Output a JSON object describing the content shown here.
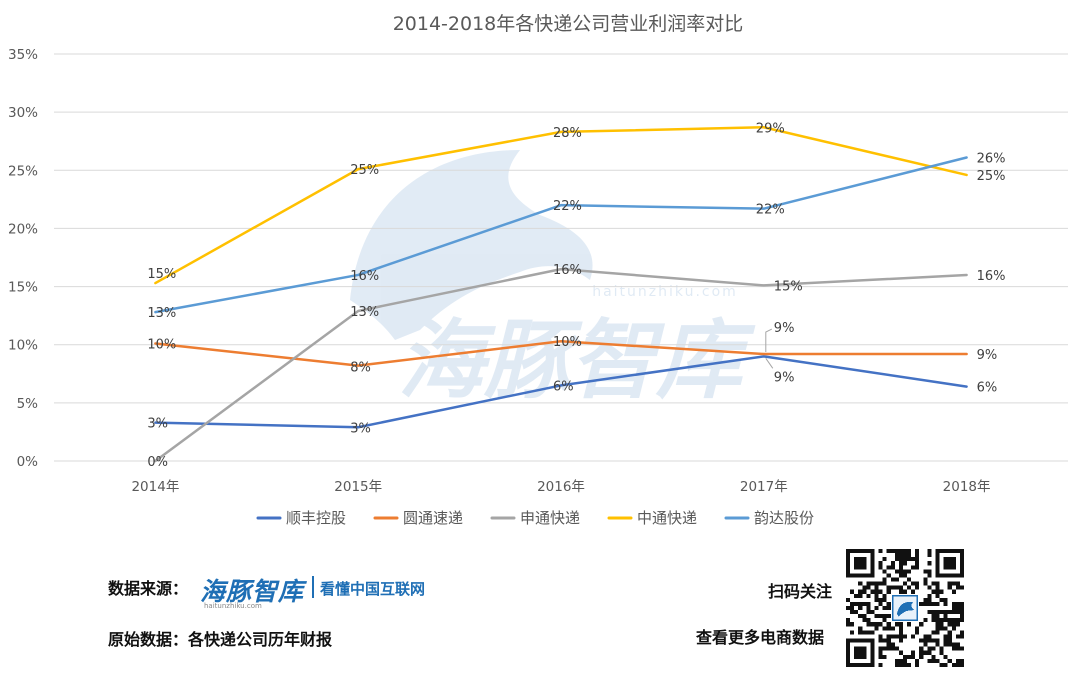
{
  "chart_data": {
    "type": "line",
    "title": "2014-2018年各快递公司营业利润率对比",
    "categories": [
      "2014年",
      "2015年",
      "2016年",
      "2017年",
      "2018年"
    ],
    "y_ticks": [
      "0%",
      "5%",
      "10%",
      "15%",
      "20%",
      "25%",
      "30%",
      "35%"
    ],
    "ylim": [
      0,
      35
    ],
    "grid": "horizontal",
    "legend_position": "bottom",
    "series": [
      {
        "name": "顺丰控股",
        "color": "#4472c4",
        "values": [
          3.3,
          2.9,
          6.5,
          9.0,
          6.4
        ],
        "labels": [
          "3%",
          "3%",
          "6%",
          "9%",
          "6%"
        ]
      },
      {
        "name": "圆通速递",
        "color": "#ed7d31",
        "values": [
          10.1,
          8.2,
          10.3,
          9.2,
          9.2
        ],
        "labels": [
          "10%",
          "8%",
          "10%",
          "9%",
          "9%"
        ]
      },
      {
        "name": "申通快递",
        "color": "#a5a5a5",
        "values": [
          0,
          12.9,
          16.5,
          15.1,
          16.0
        ],
        "labels": [
          "0%",
          "13%",
          "16%",
          "15%",
          "16%"
        ]
      },
      {
        "name": "中通快递",
        "color": "#ffc000",
        "values": [
          15.3,
          25.1,
          28.3,
          28.7,
          24.6
        ],
        "labels": [
          "15%",
          "25%",
          "28%",
          "29%",
          "25%"
        ]
      },
      {
        "name": "韵达股份",
        "color": "#5b9bd5",
        "values": [
          12.8,
          16.0,
          22.0,
          21.7,
          26.1
        ],
        "labels": [
          "13%",
          "16%",
          "22%",
          "22%",
          "26%"
        ]
      }
    ]
  },
  "watermark": {
    "text": "海豚智库",
    "url": "haitunzhiku.com"
  },
  "footer": {
    "source_label": "数据来源：",
    "brand_name": "海豚智库",
    "brand_slogan": "看懂中国互联网",
    "brand_url": "haitunzhiku.com",
    "raw_data_label": "原始数据：各快递公司历年财报",
    "scan_label": "扫码关注",
    "more_label": "查看更多电商数据"
  }
}
